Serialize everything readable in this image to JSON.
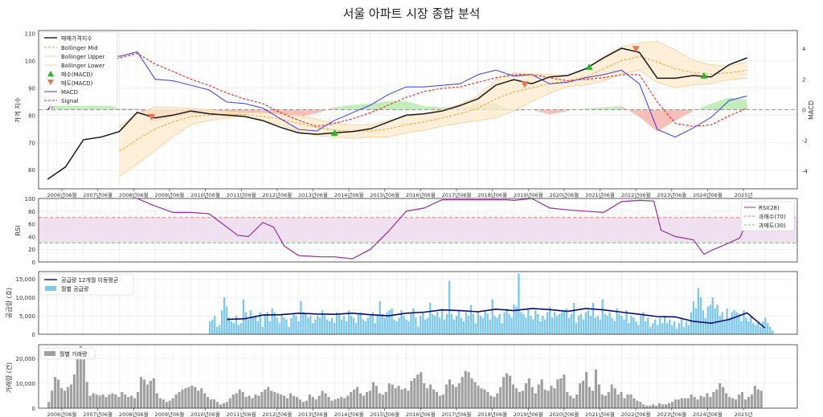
{
  "title": "서울 아파트 시장 종합 분석",
  "chart_data": [
    {
      "panel": "price",
      "type": "line",
      "ylabel": "가격 지수",
      "y2label": "MACD",
      "ylim": [
        53,
        111
      ],
      "y2lim": [
        -5.2,
        5.2
      ],
      "yticks": [
        60,
        70,
        80,
        90,
        100,
        110
      ],
      "y2ticks": [
        -4,
        -2,
        0,
        2,
        4
      ],
      "legend_position": "top-left",
      "legend": [
        "매매가격지수",
        "Bollinger Mid",
        "Bollinger Upper",
        "Bollinger Lower",
        "매수(MACD)",
        "매도(MACD)",
        "MACD",
        "Signal"
      ],
      "x": [
        2006.0,
        2006.5,
        2007.0,
        2007.5,
        2008.0,
        2008.5,
        2009.0,
        2009.5,
        2010.0,
        2010.5,
        2011.0,
        2011.5,
        2012.0,
        2012.5,
        2013.0,
        2013.5,
        2014.0,
        2014.5,
        2015.0,
        2015.5,
        2016.0,
        2016.5,
        2017.0,
        2017.5,
        2018.0,
        2018.5,
        2019.0,
        2019.5,
        2020.0,
        2020.5,
        2021.0,
        2021.5,
        2022.0,
        2022.5,
        2023.0,
        2023.5,
        2024.0,
        2024.5,
        2025.0,
        2025.5
      ],
      "series": [
        {
          "name": "매매가격지수",
          "values": [
            56.5,
            61,
            71,
            72,
            74,
            81,
            79,
            80,
            81.5,
            80.5,
            80,
            79.5,
            78,
            75.5,
            73.5,
            73,
            73.5,
            74,
            75,
            77.5,
            80,
            80.5,
            81.5,
            83.5,
            86,
            91,
            93,
            91.5,
            94,
            94.5,
            97,
            101,
            104.5,
            103,
            93.5,
            93.5,
            94.5,
            94,
            98.5,
            101
          ]
        },
        {
          "name": "Bollinger Mid",
          "values": [
            null,
            null,
            null,
            null,
            66.8,
            71,
            75,
            77.5,
            79.5,
            80,
            80.2,
            80.2,
            79.5,
            78.5,
            77,
            75.5,
            74.5,
            74,
            74.2,
            75,
            76.5,
            77.5,
            79,
            80.5,
            82.5,
            86,
            88.5,
            90,
            91.5,
            92.5,
            94,
            97,
            100,
            101.5,
            99.5,
            97,
            95.5,
            95,
            95.5,
            96.5
          ]
        },
        {
          "name": "Bollinger Upper",
          "values": [
            null,
            null,
            null,
            null,
            76,
            80.5,
            83,
            83,
            82.5,
            82,
            81.5,
            81,
            81,
            80.5,
            80,
            78.5,
            77,
            76.5,
            76.5,
            78,
            79.5,
            80.5,
            82,
            84,
            87,
            93,
            95.5,
            95,
            95,
            94.5,
            97,
            101.5,
            105,
            106.5,
            107,
            104,
            100,
            98.5,
            98,
            99.5
          ]
        },
        {
          "name": "Bollinger Lower",
          "values": [
            null,
            null,
            null,
            null,
            57.5,
            62,
            67,
            72,
            76.5,
            78,
            79,
            79.5,
            78,
            76.5,
            74,
            72.5,
            72,
            71.5,
            72,
            72,
            73.5,
            74.5,
            76,
            77,
            78,
            79,
            81.5,
            85,
            88,
            90.5,
            91,
            92.5,
            95,
            96.5,
            92,
            90,
            91,
            91.5,
            93,
            93.5
          ]
        }
      ],
      "macd": {
        "MACD": [
          0,
          1.5,
          3.7,
          3.7,
          3.5,
          3.8,
          2,
          1.9,
          1.6,
          1.3,
          0.5,
          0.4,
          0.1,
          -0.6,
          -1.3,
          -1.4,
          -0.7,
          -0.2,
          0.3,
          1,
          1.5,
          1.5,
          1.6,
          1.7,
          2.3,
          2.6,
          2.2,
          2.3,
          1.7,
          1.8,
          2.1,
          2.3,
          2.6,
          1.7,
          -1.3,
          -1.8,
          -1.2,
          -0.5,
          0.6,
          0.9
        ],
        "Signal": [
          0,
          0.6,
          2.2,
          3.1,
          3.4,
          3.7,
          3,
          2.5,
          2,
          1.6,
          1.1,
          0.7,
          0.4,
          -0.2,
          -0.7,
          -1.1,
          -0.9,
          -0.6,
          -0.2,
          0.3,
          0.8,
          1.2,
          1.4,
          1.5,
          1.8,
          2.1,
          2.3,
          2.3,
          2.1,
          1.9,
          2,
          2.1,
          2.3,
          2.3,
          0.5,
          -0.9,
          -1.1,
          -1,
          -0.4,
          0.1
        ]
      },
      "markers": {
        "buy": [
          {
            "x": 2014.0,
            "y": 73.3
          },
          {
            "x": 2021.1,
            "y": 97.5
          },
          {
            "x": 2024.3,
            "y": 94.3
          }
        ],
        "sell": [
          {
            "x": 2008.9,
            "y": 79.5
          },
          {
            "x": 2019.3,
            "y": 91.5
          },
          {
            "x": 2022.4,
            "y": 104.5
          }
        ]
      }
    },
    {
      "panel": "rsi",
      "type": "line",
      "ylabel": "RSI",
      "ylim": [
        0,
        100
      ],
      "yticks": [
        0,
        20,
        40,
        60,
        80,
        100
      ],
      "legend_position": "top-right",
      "legend": [
        "RSI(28)",
        "과매수(70)",
        "과매도(30)"
      ],
      "levels": [
        70,
        30
      ],
      "x": [
        2008.5,
        2009.0,
        2009.5,
        2010.0,
        2010.5,
        2011.0,
        2011.3,
        2011.6,
        2012.0,
        2012.3,
        2012.6,
        2013.0,
        2013.3,
        2013.6,
        2014.0,
        2014.5,
        2015.0,
        2015.5,
        2016.0,
        2016.5,
        2017.0,
        2018.0,
        2018.8,
        2019.0,
        2019.5,
        2020.0,
        2020.5,
        2021.0,
        2021.5,
        2022.0,
        2022.5,
        2022.9,
        2023.1,
        2023.5,
        2024.0,
        2024.3,
        2024.5,
        2025.0,
        2025.3,
        2025.6
      ],
      "values": [
        100,
        88,
        78,
        78,
        76,
        55,
        42,
        40,
        62,
        55,
        25,
        10,
        9,
        8,
        8,
        5,
        20,
        48,
        80,
        85,
        98,
        98,
        98,
        97,
        100,
        85,
        82,
        80,
        78,
        95,
        97,
        96,
        50,
        40,
        35,
        12,
        18,
        30,
        38,
        78
      ]
    },
    {
      "panel": "supply",
      "type": "bar",
      "ylabel": "공급량 (호)",
      "ylim": [
        0,
        17000
      ],
      "yticks": [
        0,
        5000,
        10000,
        15000
      ],
      "legend_position": "top-left",
      "legend": [
        "공급량 12개월 이동평균",
        "월별 공급량"
      ],
      "bar_range": [
        2010.5,
        2026.25
      ],
      "bars": [
        3500,
        4000,
        5000,
        2000,
        2500,
        6500,
        10000,
        7500,
        4500,
        3500,
        3000,
        5000,
        2500,
        3000,
        9500,
        6000,
        4000,
        6500,
        4500,
        5000,
        3500,
        6000,
        2000,
        5500,
        6000,
        3500,
        7000,
        6000,
        4500,
        3000,
        5500,
        4500,
        4000,
        2000,
        4500,
        5500,
        5000,
        3500,
        9000,
        6000,
        5500,
        4500,
        5000,
        3000,
        4000,
        5000,
        4500,
        6500,
        5000,
        4000,
        3500,
        4500,
        3000,
        6000,
        5500,
        4000,
        5000,
        3500,
        6500,
        5000,
        4500,
        3000,
        5500,
        6000,
        4000,
        3500,
        4500,
        5000,
        6000,
        3000,
        5000,
        9000,
        5500,
        4500,
        6000,
        6500,
        7000,
        4000,
        3500,
        4500,
        6500,
        5000,
        4000,
        3500,
        5500,
        7000,
        4500,
        2000,
        5000,
        6000,
        4000,
        4500,
        8500,
        5500,
        5000,
        6000,
        4500,
        7000,
        4000,
        5500,
        14500,
        5500,
        4000,
        5000,
        6500,
        4500,
        3500,
        6000,
        5000,
        8000,
        5500,
        3000,
        6000,
        5000,
        4500,
        6500,
        5500,
        4000,
        9500,
        5000,
        4500,
        5500,
        3000,
        6000,
        7000,
        5500,
        4500,
        8000,
        7500,
        16500,
        6000,
        5500,
        4500,
        7000,
        5000,
        4000,
        6500,
        5500,
        3500,
        5000,
        4000,
        6000,
        7500,
        4500,
        6000,
        5000,
        5500,
        6000,
        6500,
        7000,
        4500,
        5500,
        8500,
        3000,
        5000,
        5500,
        4000,
        6000,
        6500,
        5000,
        8500,
        4500,
        5000,
        4000,
        9500,
        5500,
        5000,
        6000,
        4500,
        3500,
        7000,
        5500,
        5000,
        4000,
        6500,
        3000,
        5000,
        4500,
        3500,
        2500,
        5000,
        6000,
        3500,
        4500,
        2000,
        3000,
        4000,
        2500,
        4500,
        3000,
        5000,
        3000,
        4000,
        2500,
        3500,
        1500,
        3000,
        4500,
        2000,
        3500,
        2500,
        6000,
        9000,
        7000,
        12500,
        10000,
        6500,
        4500,
        7500,
        8000,
        10000,
        7000,
        8000,
        5000,
        6000,
        3500,
        7000,
        4500,
        6000,
        6500,
        6000,
        5500,
        3500,
        6500,
        4500,
        3500,
        5000,
        3000,
        2500,
        3500,
        2000,
        3500,
        4500,
        3000,
        2000,
        1000
      ],
      "moving_average": {
        "x": [
          2011.0,
          2011.5,
          2012.0,
          2012.5,
          2013.0,
          2013.5,
          2014.0,
          2014.5,
          2015.0,
          2015.5,
          2016.0,
          2016.5,
          2017.0,
          2017.5,
          2018.0,
          2018.5,
          2019.0,
          2019.5,
          2020.0,
          2020.5,
          2021.0,
          2021.5,
          2022.0,
          2022.5,
          2023.0,
          2023.5,
          2024.0,
          2024.5,
          2025.0,
          2025.5,
          2026.0
        ],
        "values": [
          4000,
          4200,
          5200,
          5300,
          5700,
          5500,
          5400,
          5700,
          5300,
          5000,
          5700,
          6000,
          6600,
          6400,
          6100,
          6800,
          6400,
          7000,
          6700,
          6200,
          7000,
          6600,
          6000,
          5400,
          4800,
          4700,
          3500,
          3000,
          4000,
          5800,
          1700
        ]
      }
    },
    {
      "panel": "transactions",
      "type": "bar",
      "ylabel": "거래량 (건)",
      "ylim": [
        0,
        25500
      ],
      "yticks": [
        0,
        10000,
        20000
      ],
      "legend_position": "top-left",
      "legend": [
        "월별 거래량"
      ],
      "bar_range": [
        2006.0,
        2025.95
      ],
      "bars": [
        2500,
        7000,
        12500,
        11500,
        8000,
        7000,
        8500,
        9500,
        13500,
        20000,
        25000,
        19500,
        10500,
        5000,
        6000,
        5500,
        5000,
        5500,
        4500,
        5500,
        6000,
        5500,
        4500,
        6500,
        5500,
        4500,
        5000,
        4000,
        6500,
        12500,
        11500,
        9500,
        11000,
        12000,
        6000,
        4000,
        3500,
        2500,
        3000,
        4000,
        5500,
        6500,
        7500,
        8000,
        8500,
        9000,
        8500,
        7000,
        8000,
        6000,
        4500,
        3500,
        3500,
        2500,
        1500,
        2000,
        2500,
        4000,
        5500,
        6000,
        7500,
        6500,
        4500,
        5000,
        4000,
        5500,
        5000,
        6500,
        7500,
        8500,
        7000,
        6500,
        6000,
        5500,
        5000,
        4000,
        6000,
        5000,
        4500,
        3500,
        2500,
        3000,
        5500,
        4500,
        3500,
        5000,
        7000,
        6000,
        4500,
        3000,
        3500,
        4000,
        4500,
        4000,
        5000,
        6500,
        7500,
        8500,
        6000,
        5000,
        6500,
        7000,
        10500,
        9000,
        6000,
        5500,
        6500,
        10000,
        9500,
        8000,
        9000,
        7500,
        8000,
        7000,
        11000,
        12000,
        13500,
        14500,
        10000,
        8000,
        9500,
        7500,
        6500,
        5000,
        5500,
        9500,
        11500,
        9500,
        8500,
        10000,
        12500,
        15000,
        14500,
        12000,
        10500,
        9000,
        8000,
        7500,
        6500,
        5000,
        4500,
        6000,
        8500,
        12500,
        14000,
        13000,
        9500,
        8000,
        6500,
        7000,
        10000,
        12000,
        8500,
        6000,
        9500,
        11500,
        7500,
        7000,
        9000,
        8000,
        11500,
        12000,
        13500,
        6500,
        5000,
        4000,
        5500,
        10000,
        11000,
        14500,
        8500,
        7000,
        15500,
        9500,
        5500,
        5000,
        6500,
        9500,
        8000,
        5500,
        6500,
        4000,
        5500,
        5500,
        4000,
        3000,
        2500,
        1500,
        1000,
        1000,
        1500,
        1000,
        2000,
        1500,
        1500,
        2000,
        2500,
        3500,
        3500,
        4000,
        4000,
        4000,
        5500,
        4500,
        3500,
        5000,
        4500,
        6000,
        4500,
        6500,
        7500,
        10000,
        8500,
        6000,
        4500,
        4000,
        3500,
        5500,
        6500,
        3500,
        4500,
        5500,
        9000,
        7500,
        7000
      ]
    }
  ],
  "x_ticks": [
    "2006년06월",
    "2007년06월",
    "2008년06월",
    "2009년06월",
    "2010년06월",
    "2011년06월",
    "2012년06월",
    "2013년06월",
    "2014년06월",
    "2015년06월",
    "2016년06월",
    "2017년06월",
    "2018년06월",
    "2019년06월",
    "2020년06월",
    "2021년06월",
    "2022년06월",
    "2023년06월",
    "2024년06월",
    "2025년"
  ],
  "colors": {
    "price": "#1a1a1a",
    "bb_mid": "#f5a030",
    "bb_band": "#fde9cc",
    "bb_edge": "#f7c88a",
    "buy": "#2bb52b",
    "sell": "#f07050",
    "macd": "#3a3af0",
    "signal": "#ee2222",
    "macd_pos": "#b9ebb0",
    "macd_neg": "#f7b3ab",
    "rsi": "#9b2c9b",
    "rsi_band": "#ecd9ec",
    "overbought": "#f07878",
    "oversold": "#6cc46c",
    "supply_bar": "#7ec8e8",
    "supply_ma": "#0b0b78",
    "trans_bar": "#a0a0a0"
  }
}
